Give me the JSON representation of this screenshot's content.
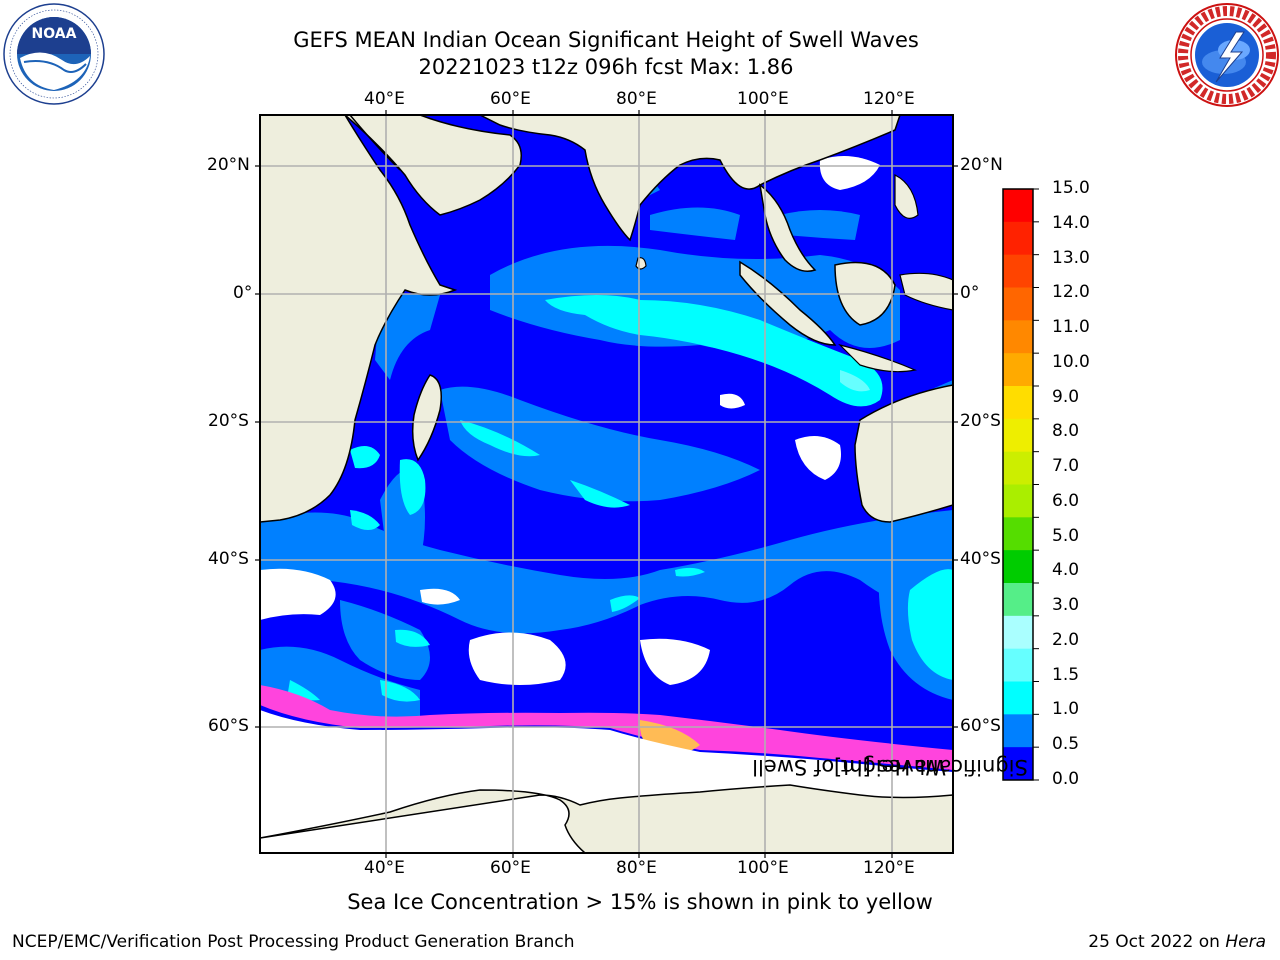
{
  "title": {
    "line1": "GEFS MEAN Indian Ocean Significant Height of Swell Waves",
    "line2": "20221023 t12z 096h fcst   Max: 1.86"
  },
  "logos": {
    "left": {
      "text": "NOAA",
      "ring_text": "NATIONAL OCEANIC AND ATMOSPHERIC ADMINISTRATION · U.S. DEPARTMENT OF COMMERCE"
    },
    "right": {
      "ring_text": "NATIONAL WEATHER SERVICE"
    }
  },
  "axes": {
    "lon_top": [
      "40°E",
      "60°E",
      "80°E",
      "100°E",
      "120°E"
    ],
    "lon_bottom": [
      "40°E",
      "60°E",
      "80°E",
      "100°E",
      "120°E"
    ],
    "lat_left": [
      "20°N",
      "0°",
      "20°S",
      "40°S",
      "60°S"
    ],
    "lat_right": [
      "20°N",
      "0°",
      "20°S",
      "40°S",
      "60°S"
    ]
  },
  "colorbar": {
    "title_line1": "Significant Height of Swell",
    "title_line2": "Waves [m]",
    "ticks": [
      "15.0",
      "14.0",
      "13.0",
      "12.0",
      "11.0",
      "10.0",
      "9.0",
      "8.0",
      "7.0",
      "6.0",
      "5.0",
      "4.0",
      "3.0",
      "2.0",
      "1.5",
      "1.0",
      "0.5",
      "0.0"
    ],
    "colors_top_to_bottom": [
      "#ff0000",
      "#ff2200",
      "#ff4400",
      "#ff6600",
      "#ff8800",
      "#ffaa00",
      "#ffdd00",
      "#eeee00",
      "#ccee00",
      "#aaee00",
      "#55dd00",
      "#00cc00",
      "#55ee88",
      "#aaffff",
      "#66ffff",
      "#00ffff",
      "#0080ff",
      "#0000ff"
    ]
  },
  "map_colors": {
    "land": "#eeeedd",
    "swell_0_0_5": "#0000ff",
    "swell_0_5_1": "#0080ff",
    "swell_1_1_5": "#00ffff",
    "swell_1_5_2": "#66ffff",
    "ice_free": "#ffffff",
    "sea_ice_pink": "#ff44dd",
    "sea_ice_orange": "#ffbb55"
  },
  "footer": {
    "ice_note": "Sea Ice Concentration > 15% is shown in pink to yellow",
    "left": "NCEP/EMC/Verification Post Processing Product Generation Branch",
    "right_prefix": "25 Oct 2022 on ",
    "right_host": "Hera"
  }
}
